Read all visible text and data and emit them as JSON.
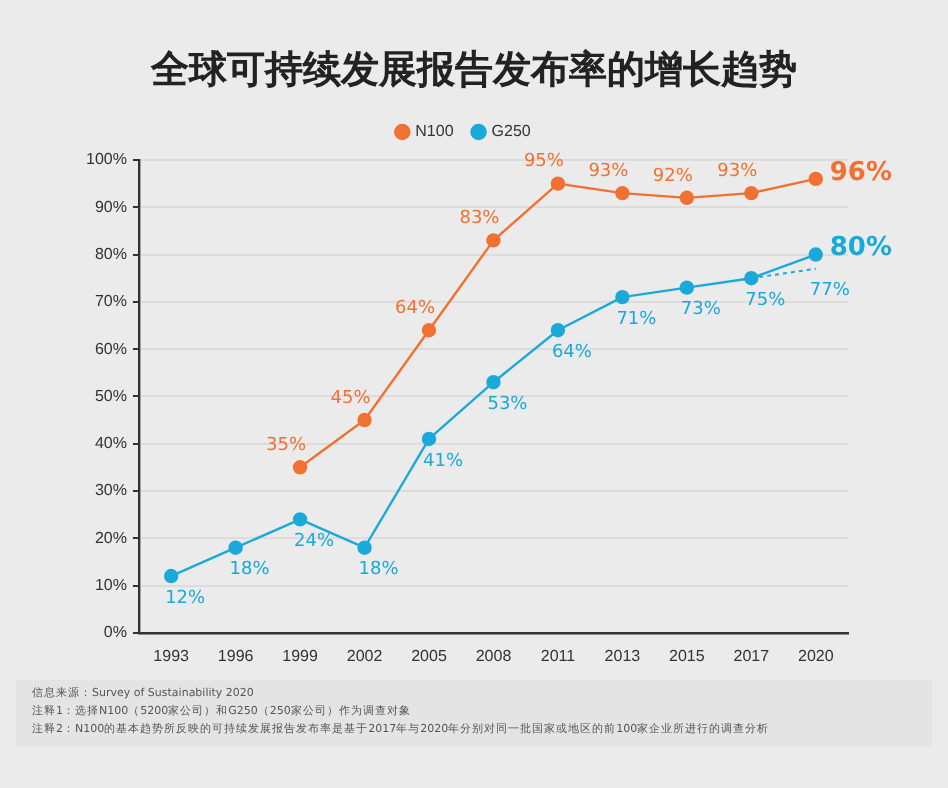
{
  "chart_data": {
    "type": "line",
    "title": "全球可持续发展报告发布率的增长趋势",
    "categories": [
      "1993",
      "1996",
      "1999",
      "2002",
      "2005",
      "2008",
      "2011",
      "2013",
      "2015",
      "2017",
      "2020"
    ],
    "series": [
      {
        "name": "N100",
        "color": "#f07132",
        "values": [
          null,
          null,
          35,
          45,
          64,
          83,
          95,
          93,
          92,
          93,
          96
        ],
        "value_labels": [
          null,
          null,
          "35%",
          "45%",
          "64%",
          "83%",
          "95%",
          "93%",
          "92%",
          "93%",
          "96%"
        ]
      },
      {
        "name": "G250",
        "color": "#1ba9d9",
        "values": [
          12,
          18,
          24,
          18,
          41,
          53,
          64,
          71,
          73,
          75,
          80
        ],
        "value_labels": [
          "12%",
          "18%",
          "24%",
          "18%",
          "41%",
          "53%",
          "64%",
          "71%",
          "73%",
          "75%",
          "80%"
        ]
      },
      {
        "color": "#1ba9d9",
        "line_style": "dotted",
        "values": [
          null,
          null,
          null,
          null,
          null,
          null,
          null,
          null,
          null,
          75,
          77
        ],
        "value_labels": [
          null,
          null,
          null,
          null,
          null,
          null,
          null,
          null,
          null,
          null,
          "77%"
        ]
      }
    ],
    "ylim": [
      0,
      100
    ],
    "yticks": [
      {
        "value": 0,
        "label": "0%"
      },
      {
        "value": 10,
        "label": "10%"
      },
      {
        "value": 20,
        "label": "20%"
      },
      {
        "value": 30,
        "label": "30%"
      },
      {
        "value": 40,
        "label": "40%"
      },
      {
        "value": 50,
        "label": "50%"
      },
      {
        "value": 60,
        "label": "60%"
      },
      {
        "value": 70,
        "label": "70%"
      },
      {
        "value": 80,
        "label": "80%"
      },
      {
        "value": 90,
        "label": "90%"
      },
      {
        "value": 100,
        "label": "100%"
      }
    ],
    "grid": "y",
    "legend": "top",
    "marker": "circle",
    "annotations": [
      "信息来源：Survey of Sustainability 2020",
      "注释1：选择N100（5200家公司）和G250（250家公司）作为调查对象",
      "注释2：N100的基本趋势所反映的可持续发展报告发布率是基于2017年与2020年分别对同一批国家或地区的前100家企业所进行的调查分析"
    ]
  }
}
